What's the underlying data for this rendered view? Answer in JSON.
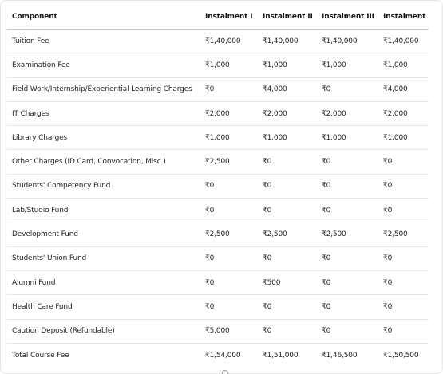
{
  "table": {
    "headers": [
      "Component",
      "Instalment I",
      "Instalment II",
      "Instalment III",
      "Instalment IV"
    ],
    "rows": [
      [
        "Tuition Fee",
        "₹1,40,000",
        "₹1,40,000",
        "₹1,40,000",
        "₹1,40,000"
      ],
      [
        "Examination Fee",
        "₹1,000",
        "₹1,000",
        "₹1,000",
        "₹1,000"
      ],
      [
        "Field Work/Internship/Experiential Learning Charges",
        "₹0",
        "₹4,000",
        "₹0",
        "₹4,000"
      ],
      [
        "IT Charges",
        "₹2,000",
        "₹2,000",
        "₹2,000",
        "₹2,000"
      ],
      [
        "Library Charges",
        "₹1,000",
        "₹1,000",
        "₹1,000",
        "₹1,000"
      ],
      [
        "Other Charges (ID Card, Convocation, Misc.)",
        "₹2,500",
        "₹0",
        "₹0",
        "₹0"
      ],
      [
        "Students' Competency Fund",
        "₹0",
        "₹0",
        "₹0",
        "₹0"
      ],
      [
        "Lab/Studio Fund",
        "₹0",
        "₹0",
        "₹0",
        "₹0"
      ],
      [
        "Development Fund",
        "₹2,500",
        "₹2,500",
        "₹2,500",
        "₹2,500"
      ],
      [
        "Students' Union Fund",
        "₹0",
        "₹0",
        "₹0",
        "₹0"
      ],
      [
        "Alumni Fund",
        "₹0",
        "₹500",
        "₹0",
        "₹0"
      ],
      [
        "Health Care Fund",
        "₹0",
        "₹0",
        "₹0",
        "₹0"
      ],
      [
        "Caution Deposit (Refundable)",
        "₹5,000",
        "₹0",
        "₹0",
        "₹0"
      ],
      [
        "Total Course Fee",
        "₹1,54,000",
        "₹1,51,000",
        "₹1,46,500",
        "₹1,50,500"
      ]
    ]
  },
  "colors": {
    "text": "#242424",
    "header_rule": "#c9c9c9",
    "row_rule": "#e6e6e6",
    "background": "#ffffff"
  }
}
